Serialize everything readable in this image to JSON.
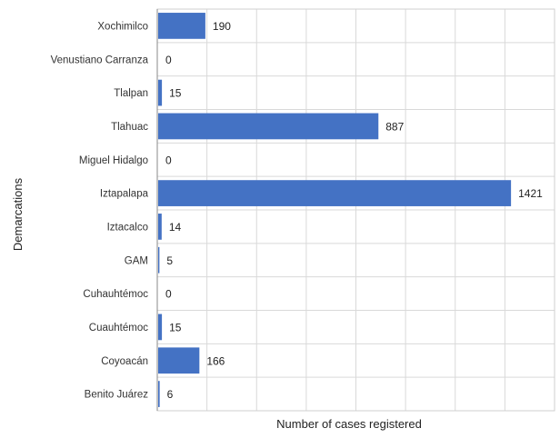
{
  "chart_data": {
    "type": "bar",
    "orientation": "horizontal",
    "title": "",
    "xlabel": "Number of cases registered",
    "ylabel": "Demarcations",
    "categories": [
      "Xochimilco",
      "Venustiano Carranza",
      "Tlalpan",
      "Tlahuac",
      "Miguel Hidalgo",
      "Iztapalapa",
      "Iztacalco",
      "GAM",
      "Cuhauhtémoc",
      "Cuauhtémoc",
      "Coyoacán",
      "Benito Juárez"
    ],
    "values": [
      190,
      0,
      15,
      887,
      0,
      1421,
      14,
      5,
      0,
      15,
      166,
      6
    ],
    "data_labels": [
      "190",
      "0",
      "15",
      "887",
      "0",
      "1421",
      "14",
      "5",
      "0",
      "15",
      "166",
      "6"
    ],
    "xlim": [
      0,
      1600
    ],
    "grid": true,
    "tick_labels_x_visible": false,
    "bar_color": "#4472c4"
  }
}
